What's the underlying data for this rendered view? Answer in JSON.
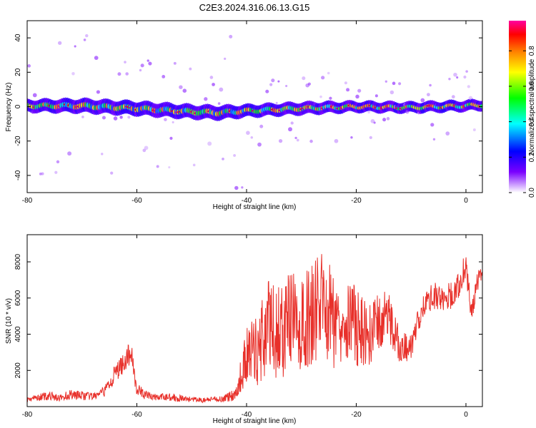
{
  "title": "C2E3.2024.316.06.13.G15",
  "colors": {
    "snr_line": "#e8302a",
    "frame": "#000000"
  },
  "chart_data": [
    {
      "type": "heatmap",
      "xlabel": "Height of straight line (km)",
      "ylabel": "Frequency (Hz)",
      "xlim": [
        -80,
        3
      ],
      "ylim": [
        -50,
        50
      ],
      "xticks": [
        -80,
        -60,
        -40,
        -20,
        0
      ],
      "yticks": [
        -40,
        -20,
        0,
        20,
        40
      ],
      "colorbar": {
        "label": "Normalized spectral amplitude",
        "ticks": [
          "0.0",
          "0.2",
          "0.4",
          "0.6",
          "0.8"
        ],
        "tick_values": [
          0.0,
          0.2,
          0.4,
          0.6,
          0.8
        ],
        "range": [
          0,
          0.97
        ],
        "colormap": [
          "#ffffff",
          "#7a00ff",
          "#0000ff",
          "#00ffff",
          "#00ff00",
          "#ffff00",
          "#ff8000",
          "#ff0000",
          "#ff00a0"
        ]
      },
      "ridge": {
        "x": [
          -80,
          -70,
          -60,
          -50,
          -45,
          -40,
          -30,
          -20,
          -10,
          0,
          3
        ],
        "freq": [
          0.5,
          0.5,
          -1.0,
          -3.0,
          -3.5,
          -2.5,
          -1.0,
          0.0,
          -0.5,
          0.5,
          1.0
        ],
        "half_width": [
          2.5,
          3.0,
          3.0,
          3.0,
          3.0,
          2.5,
          2.5,
          2.0,
          2.0,
          2.0,
          2.0
        ]
      }
    },
    {
      "type": "line",
      "xlabel": "Height of straight line (km)",
      "ylabel": "SNR (10 * v/v)",
      "xlim": [
        -80,
        3
      ],
      "ylim": [
        0,
        9500
      ],
      "xticks": [
        -80,
        -60,
        -40,
        -20,
        0
      ],
      "yticks": [
        2000,
        4000,
        6000,
        8000
      ],
      "series": [
        {
          "x": [
            -80,
            -78,
            -76,
            -74,
            -72,
            -70,
            -68,
            -66,
            -64,
            -62,
            -61,
            -60,
            -58,
            -56,
            -54,
            -52,
            -50,
            -48,
            -46,
            -44,
            -42,
            -40,
            -38,
            -36,
            -34,
            -32,
            -30,
            -28,
            -26,
            -24,
            -22,
            -20,
            -18,
            -16,
            -14,
            -12,
            -10,
            -8,
            -6,
            -4,
            -2,
            0,
            1,
            2,
            3
          ],
          "values": [
            400,
            500,
            600,
            450,
            700,
            600,
            550,
            800,
            1800,
            2600,
            3000,
            900,
            600,
            500,
            550,
            450,
            400,
            350,
            400,
            450,
            700,
            2800,
            3200,
            4500,
            4000,
            4800,
            4300,
            5200,
            5800,
            4700,
            5200,
            4400,
            3900,
            4600,
            5000,
            3200,
            3300,
            5500,
            6200,
            6000,
            6200,
            7800,
            5000,
            6800,
            7600
          ],
          "amplitude": [
            150,
            200,
            250,
            200,
            300,
            250,
            200,
            300,
            500,
            600,
            700,
            400,
            250,
            200,
            250,
            200,
            150,
            150,
            150,
            200,
            400,
            1500,
            2200,
            2600,
            2600,
            2800,
            2600,
            2900,
            3000,
            2600,
            2500,
            2200,
            1800,
            1600,
            1500,
            900,
            700,
            700,
            800,
            800,
            700,
            800,
            600,
            500,
            500
          ]
        }
      ]
    }
  ]
}
